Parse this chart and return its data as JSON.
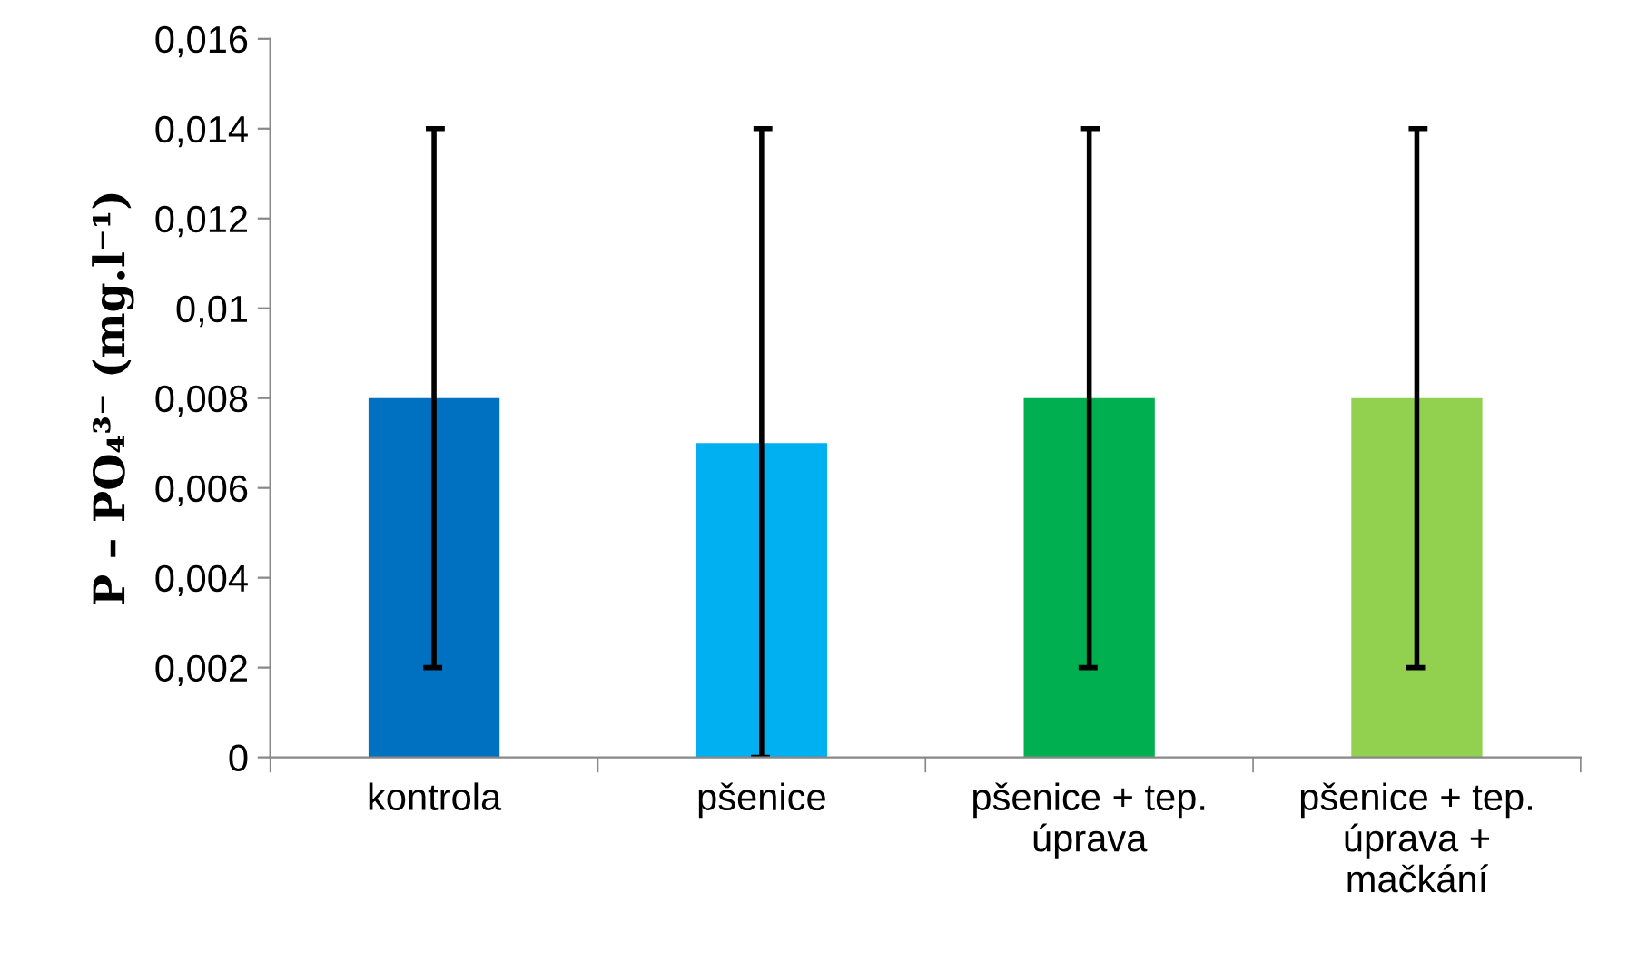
{
  "chart_data": {
    "type": "bar",
    "ylabel": "P – PO₄³⁻ (mg.l⁻¹)",
    "categories": [
      "kontrola",
      "pšenice",
      "pšenice + tep.\núprava",
      "pšenice + tep.\núprava +\nmačkání"
    ],
    "values": [
      0.008,
      0.007,
      0.008,
      0.008
    ],
    "colors": [
      "#0070c0",
      "#00b0f0",
      "#00b050",
      "#92d050"
    ],
    "errors": [
      [
        0.002,
        0.014
      ],
      [
        0,
        0.014
      ],
      [
        0.002,
        0.014
      ],
      [
        0.002,
        0.014
      ]
    ],
    "ylim": [
      0,
      0.016
    ],
    "yticks": [
      0,
      {
        "value": 0.002,
        "label": "0,002"
      },
      {
        "value": 0.004,
        "label": "0,004"
      },
      {
        "value": 0.006,
        "label": "0,006"
      },
      {
        "value": 0.008,
        "label": "0,008"
      },
      {
        "value": 0.01,
        "label": "0,01"
      },
      {
        "value": 0.012,
        "label": "0,012"
      },
      {
        "value": 0.014,
        "label": "0,014"
      },
      {
        "value": 0.016,
        "label": "0,016"
      }
    ],
    "grid": false,
    "legend": false
  }
}
